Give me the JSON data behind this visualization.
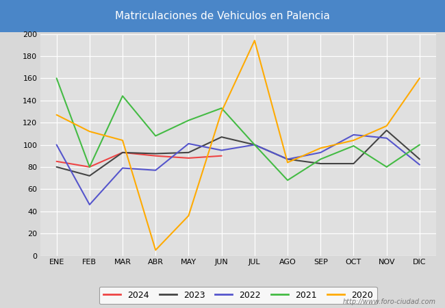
{
  "title": "Matriculaciones de Vehiculos en Palencia",
  "title_bg": "#4a86c8",
  "title_color": "white",
  "months": [
    "ENE",
    "FEB",
    "MAR",
    "ABR",
    "MAY",
    "JUN",
    "JUL",
    "AGO",
    "SEP",
    "OCT",
    "NOV",
    "DIC"
  ],
  "series": {
    "2024": {
      "values": [
        85,
        80,
        93,
        90,
        88,
        90,
        null,
        null,
        null,
        null,
        null,
        null
      ],
      "color": "#ee4444",
      "linewidth": 1.5
    },
    "2023": {
      "values": [
        80,
        72,
        93,
        92,
        93,
        107,
        100,
        87,
        83,
        83,
        113,
        87
      ],
      "color": "#444444",
      "linewidth": 1.5
    },
    "2022": {
      "values": [
        100,
        46,
        79,
        77,
        101,
        95,
        100,
        87,
        93,
        109,
        106,
        82
      ],
      "color": "#5555cc",
      "linewidth": 1.5
    },
    "2021": {
      "values": [
        160,
        80,
        144,
        108,
        122,
        133,
        100,
        68,
        87,
        99,
        80,
        100
      ],
      "color": "#44bb44",
      "linewidth": 1.5
    },
    "2020": {
      "values": [
        127,
        112,
        104,
        5,
        36,
        130,
        194,
        84,
        97,
        104,
        117,
        160
      ],
      "color": "#ffaa00",
      "linewidth": 1.5
    }
  },
  "ylim": [
    0,
    200
  ],
  "yticks": [
    0,
    20,
    40,
    60,
    80,
    100,
    120,
    140,
    160,
    180,
    200
  ],
  "fig_bg_color": "#d8d8d8",
  "plot_bg_color": "#e0e0e0",
  "grid_color": "#ffffff",
  "watermark": "http://www.foro-ciudad.com",
  "legend_order": [
    "2024",
    "2023",
    "2022",
    "2021",
    "2020"
  ]
}
